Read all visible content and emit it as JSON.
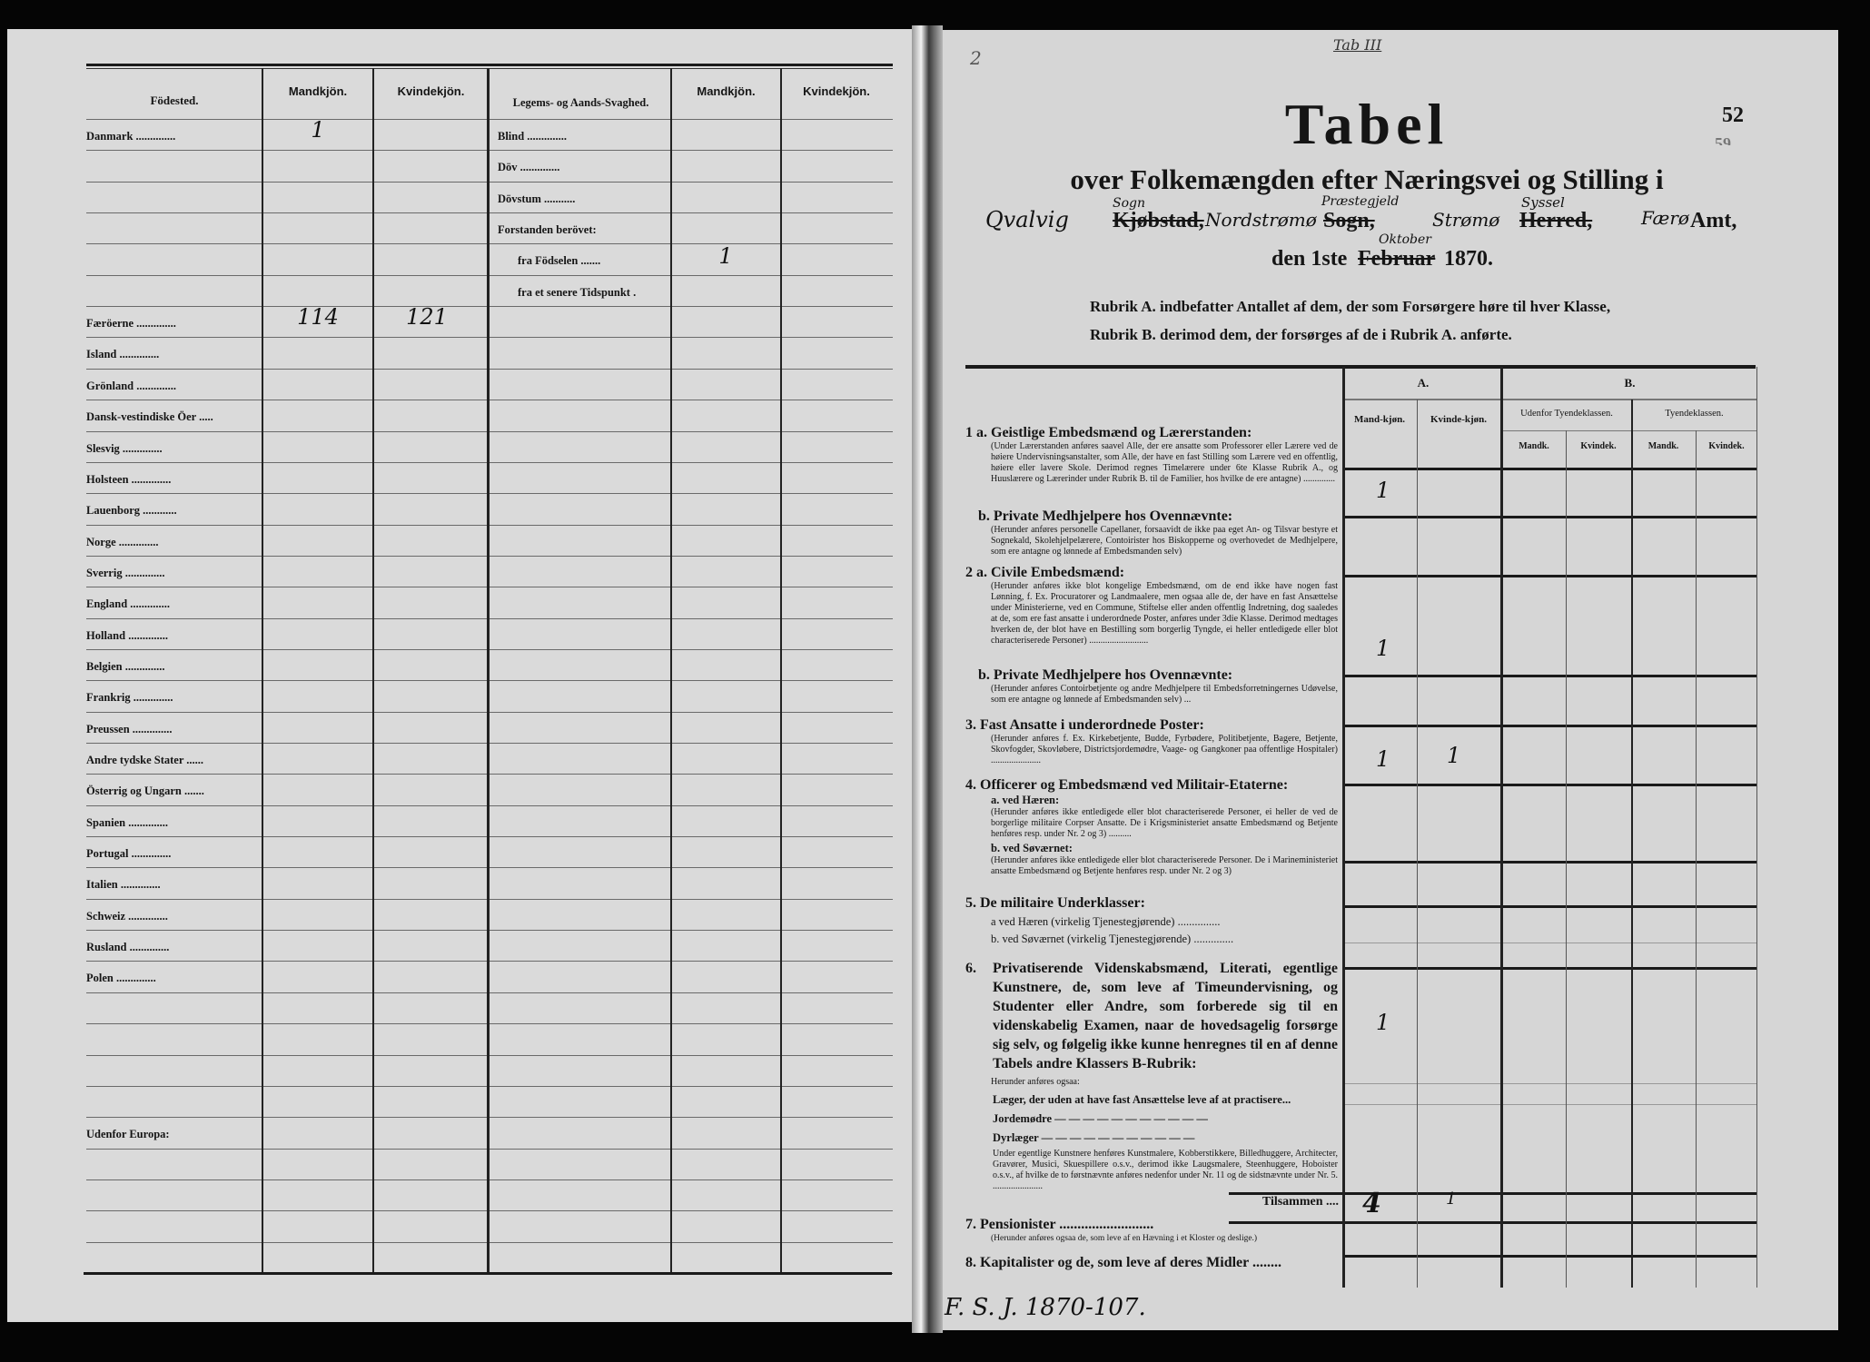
{
  "left": {
    "headers": {
      "fodested": "Födested.",
      "mand": "Mandkjön.",
      "kvinde": "Kvindekjön.",
      "svaghed": "Legems- og Aands-Svaghed.",
      "mand2": "Mandkjön.",
      "kvinde2": "Kvindekjön."
    },
    "fodested_rows": [
      "Danmark ..............",
      "",
      "",
      "",
      "",
      "",
      "Færöerne ..............",
      "Island ..............",
      "Grönland ..............",
      "Dansk-vestindiske Öer .....",
      "Slesvig ..............",
      "Holsteen ..............",
      "Lauenborg ............",
      "Norge ..............",
      "Sverrig ..............",
      "England ..............",
      "Holland ..............",
      "Belgien ..............",
      "Frankrig ..............",
      "Preussen ..............",
      "Andre tydske Stater ......",
      "Österrig og Ungarn .......",
      "Spanien ..............",
      "Portugal ..............",
      "Italien ..............",
      "Schweiz ..............",
      "Rusland ..............",
      "Polen ..............",
      "",
      "",
      "",
      "",
      "Udenfor Europa:",
      "",
      "",
      "",
      ""
    ],
    "fodested_values": {
      "0": {
        "mand": "1",
        "kvinde": ""
      },
      "6": {
        "mand": "114",
        "kvinde": "121"
      }
    },
    "svaghed_rows": [
      {
        "label": "Blind ..............",
        "mand": "",
        "kvinde": ""
      },
      {
        "label": "Döv ..............",
        "mand": "",
        "kvinde": ""
      },
      {
        "label": "Dövstum ...........",
        "mand": "",
        "kvinde": ""
      },
      {
        "label": "Forstanden berövet:",
        "mand": "",
        "kvinde": ""
      },
      {
        "label": "fra Födselen .......",
        "mand": "1",
        "kvinde": ""
      },
      {
        "label": "fra et senere Tidspunkt .",
        "mand": "",
        "kvinde": ""
      }
    ]
  },
  "right": {
    "corner_note": "2",
    "top_scribble": "Tab III",
    "page_number": "52",
    "old_page_number": "59",
    "title": "Tabel",
    "subtitle": "over Folkemængden efter Næringsvei og Stilling i",
    "place": {
      "hand_place": "Qvalvig",
      "hand_over_1": "Sogn",
      "printed_1": "Kjøbstad,",
      "hand_parish": "Nordstrømø",
      "hand_over_2": "Præstegjeld",
      "printed_2": "Sogn,",
      "hand_district": "Strømø",
      "hand_over_3": "Syssel",
      "printed_3": "Herred,",
      "hand_amt": "Færø",
      "printed_4": "Amt,"
    },
    "date": {
      "prefix": "den 1ste",
      "struck_month": "Februar",
      "hand_month": "Oktober",
      "year": "1870."
    },
    "rubrik_a": "Rubrik A. indbefatter Antallet af dem, der som Forsørgere høre til hver Klasse,",
    "rubrik_b": "Rubrik B. derimod dem, der forsørges af de i Rubrik A. anførte.",
    "table_headers": {
      "a": "A.",
      "b": "B.",
      "a_mand": "Mand-kjøn.",
      "a_kvinde": "Kvinde-kjøn.",
      "udenfor": "Udenfor Tyendeklassen.",
      "tyende": "Tyendeklassen.",
      "mandk1": "Mandk.",
      "kvindek1": "Kvindek.",
      "mandk2": "Mandk.",
      "kvindek2": "Kvindek."
    },
    "rows": [
      {
        "num": "1 a.",
        "title": "Geistlige Embedsmænd og Lærerstanden:",
        "note": "(Under Lærerstanden anføres saavel Alle, der ere ansatte som Professorer eller Lærere ved de høiere Undervisningsanstalter, som Alle, der have en fast Stilling som Lærere ved en offentlig, høiere eller lavere Skole. Derimod regnes Timelærere under 6te Klasse Rubrik A., og Huuslærere og Lærerinder under Rubrik B. til de Familier, hos hvilke de ere antagne) ..............",
        "a_mand": "1",
        "a_kvinde": ""
      },
      {
        "num": "b.",
        "title": "Private Medhjelpere hos Ovennævnte:",
        "note": "(Herunder anføres personelle Capellaner, forsaavidt de ikke paa eget An- og Tilsvar bestyre et Sognekald, Skolehjelpelærere, Contoirister hos Biskopperne og overhovedet de Medhjelpere, som ere antagne og lønnede af Embedsmanden selv)",
        "a_mand": "",
        "a_kvinde": ""
      },
      {
        "num": "2 a.",
        "title": "Civile Embedsmænd:",
        "note": "(Herunder anføres ikke blot kongelige Embedsmænd, om de end ikke have nogen fast Lønning, f. Ex. Procuratorer og Landmaalere, men ogsaa alle de, der have en fast Ansættelse under Ministerierne, ved en Commune, Stiftelse eller anden offentlig Indretning, dog saaledes at de, som ere fast ansatte i underordnede Poster, anføres under 3die Klasse. Derimod medtages hverken de, der blot have en Bestilling som borgerlig Tyngde, ei heller entledigede eller blot characteriserede Personer) ..........................",
        "a_mand": "1",
        "a_kvinde": ""
      },
      {
        "num": "b.",
        "title": "Private Medhjelpere hos Ovennævnte:",
        "note": "(Herunder anføres Contoirbetjente og andre Medhjelpere til Embedsforretningernes Udøvelse, som ere antagne og lønnede af Embedsmanden selv) ...",
        "a_mand": "",
        "a_kvinde": ""
      },
      {
        "num": "3.",
        "title": "Fast Ansatte i underordnede Poster:",
        "note": "(Herunder anføres f. Ex. Kirkebetjente, Budde, Fyrbødere, Politibetjente, Bagere, Betjente, Skovfogder, Skovløbere, Districtsjordemødre, Vaage- og Gangkoner paa offentlige Hospitaler) ......................",
        "a_mand": "1",
        "a_kvinde": "1"
      },
      {
        "num": "4.",
        "title": "Officerer og Embedsmænd ved Militair-Etaterne:",
        "sub_a": "a. ved Hæren:",
        "note": "(Herunder anføres ikke entledigede eller blot characteriserede Personer, ei heller de ved de borgerlige militaire Corpser Ansatte. De i Krigsministeriet ansatte Embedsmænd og Betjente henføres resp. under Nr. 2 og 3) ..........",
        "sub_b": "b. ved Søværnet:",
        "note_b": "(Herunder anføres ikke entledigede eller blot characteriserede Personer. De i Marineministeriet ansatte Embedsmænd og Betjente henføres resp. under Nr. 2 og 3)",
        "a_mand": "",
        "a_kvinde": ""
      },
      {
        "num": "5.",
        "title": "De militaire Underklasser:",
        "sub_a": "a  ved Hæren (virkelig Tjenestegjørende) ...............",
        "sub_b": "b. ved Søværnet (virkelig Tjenestegjørende) ..............",
        "a_mand": "",
        "a_kvinde": ""
      },
      {
        "num": "6.",
        "title": "Privatiserende Videnskabsmænd, Literati, egentlige Kunstnere, de, som leve af Timeundervisning, og Studenter eller Andre, som forberede sig til en videnskabelig Examen, naar de hovedsagelig forsørge sig selv, og følgelig ikke kunne henregnes til en af denne Tabels andre Klassers B-Rubrik:",
        "herunder": "Herunder anføres ogsaa:",
        "laeger": "Læger, der uden at have fast Ansættelse leve af at practisere...",
        "jordemodre": "Jordemødre — — — — — — — — — — —",
        "dyrlaeger": "Dyrlæger — — — — — — — — — — —",
        "note": "Under egentlige Kunstnere henføres Kunstmalere, Kobberstikkere, Billedhuggere, Architecter, Gravører, Musici, Skuespillere o.s.v., derimod ikke Laugsmalere, Steenhuggere, Hoboister o.s.v., af hvilke de to førstnævnte anføres nedenfor under Nr. 11 og de sidstnævnte under Nr. 5. ......................",
        "a_mand": "1",
        "a_kvinde": ""
      }
    ],
    "tilsammen": {
      "label": "Tilsammen ....",
      "a_mand": "4",
      "a_kvinde": "1"
    },
    "row7": {
      "num": "7.",
      "title": "Pensionister ..........................",
      "note": "(Herunder anføres ogsaa de, som leve af en Hævning i et Kloster og deslige.)"
    },
    "row8": {
      "num": "8.",
      "title": "Kapitalister og de, som leve af deres Midler ........"
    },
    "archive_ref": "F. S. J. 1870-107."
  }
}
